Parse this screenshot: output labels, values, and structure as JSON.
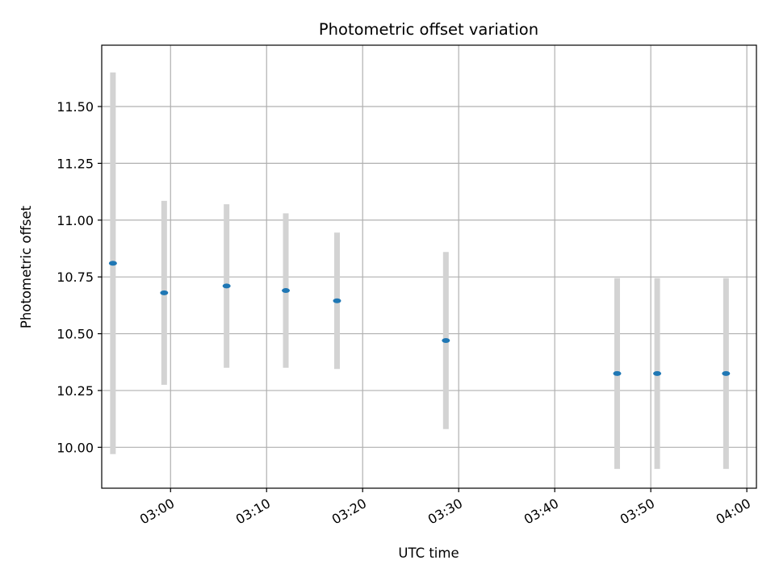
{
  "chart_data": {
    "type": "scatter",
    "title": "Photometric offset variation",
    "xlabel": "UTC time",
    "ylabel": "Photometric offset",
    "x_ticks": [
      "03:00",
      "03:10",
      "03:20",
      "03:30",
      "03:40",
      "03:50",
      "04:00"
    ],
    "y_ticks": [
      "10.00",
      "10.25",
      "10.50",
      "10.75",
      "11.00",
      "11.25",
      "11.50"
    ],
    "xlim": [
      "02:52:50",
      "04:01:00"
    ],
    "ylim": [
      9.82,
      11.77
    ],
    "grid": true,
    "legend": false,
    "series": [
      {
        "x": [
          "02:54:00",
          "02:59:20",
          "03:05:50",
          "03:12:00",
          "03:17:20",
          "03:28:40",
          "03:46:30",
          "03:50:40",
          "03:57:50"
        ],
        "y": [
          10.81,
          10.68,
          10.71,
          10.69,
          10.645,
          10.47,
          10.325,
          10.325,
          10.325
        ],
        "error": [
          0.84,
          0.405,
          0.36,
          0.34,
          0.3,
          0.39,
          0.42,
          0.42,
          0.42
        ],
        "marker_color": "#1f77b4",
        "errorbar_color": "#d3d3d3"
      }
    ]
  }
}
